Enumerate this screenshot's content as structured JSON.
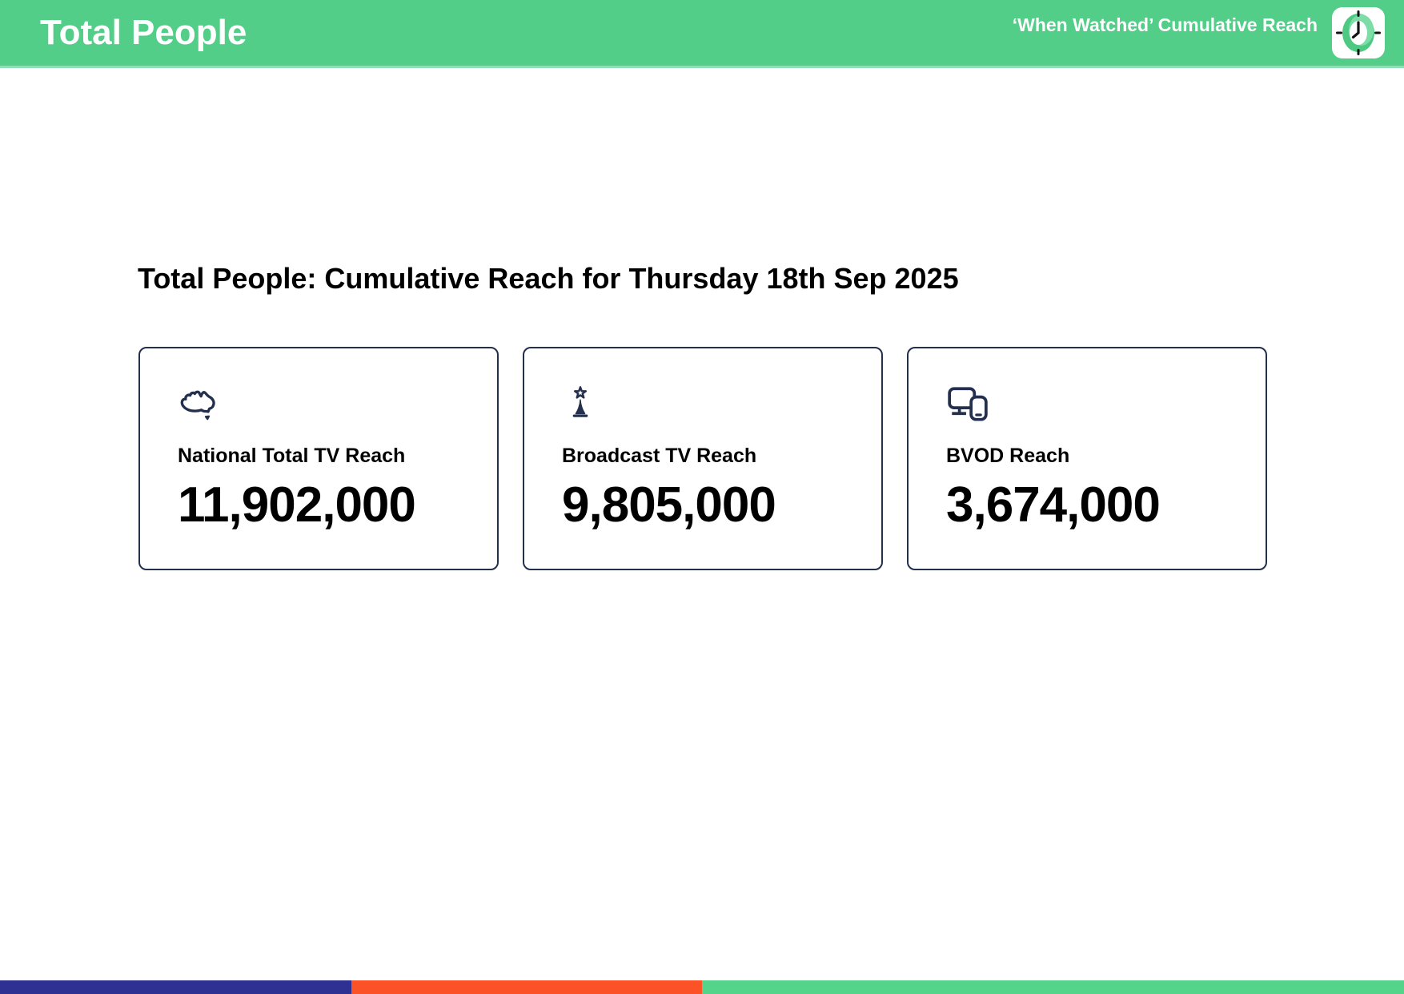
{
  "header": {
    "title": "Total People",
    "subtitle": "‘When Watched’ Cumulative Reach",
    "bg_color": "#53CE88",
    "logo": "when-watched-clock-logo"
  },
  "main": {
    "heading": "Total People: Cumulative Reach for Thursday 18th Sep 2025",
    "cards": [
      {
        "icon": "australia-map-icon",
        "label": "National Total TV Reach",
        "value": "11,902,000"
      },
      {
        "icon": "broadcast-tower-icon",
        "label": "Broadcast TV Reach",
        "value": "9,805,000"
      },
      {
        "icon": "devices-icon",
        "label": "BVOD Reach",
        "value": "3,674,000"
      }
    ]
  },
  "chart_data": {
    "type": "table",
    "title": "Total People: Cumulative Reach for Thursday 18th Sep 2025",
    "metrics": [
      {
        "label": "National Total TV Reach",
        "value": 11902000,
        "display": "11,902,000"
      },
      {
        "label": "Broadcast TV Reach",
        "value": 9805000,
        "display": "9,805,000"
      },
      {
        "label": "BVOD Reach",
        "value": 3674000,
        "display": "3,674,000"
      }
    ]
  },
  "footer": {
    "segments": [
      {
        "name": "navy",
        "color": "#2E3192",
        "width_pct": 25
      },
      {
        "name": "orange",
        "color": "#FB5227",
        "width_pct": 25
      },
      {
        "name": "green",
        "color": "#54D38B",
        "width_pct": 50
      }
    ]
  },
  "colors": {
    "card_border": "#232F4D",
    "icon_ink": "#232F4D",
    "text": "#000000"
  }
}
